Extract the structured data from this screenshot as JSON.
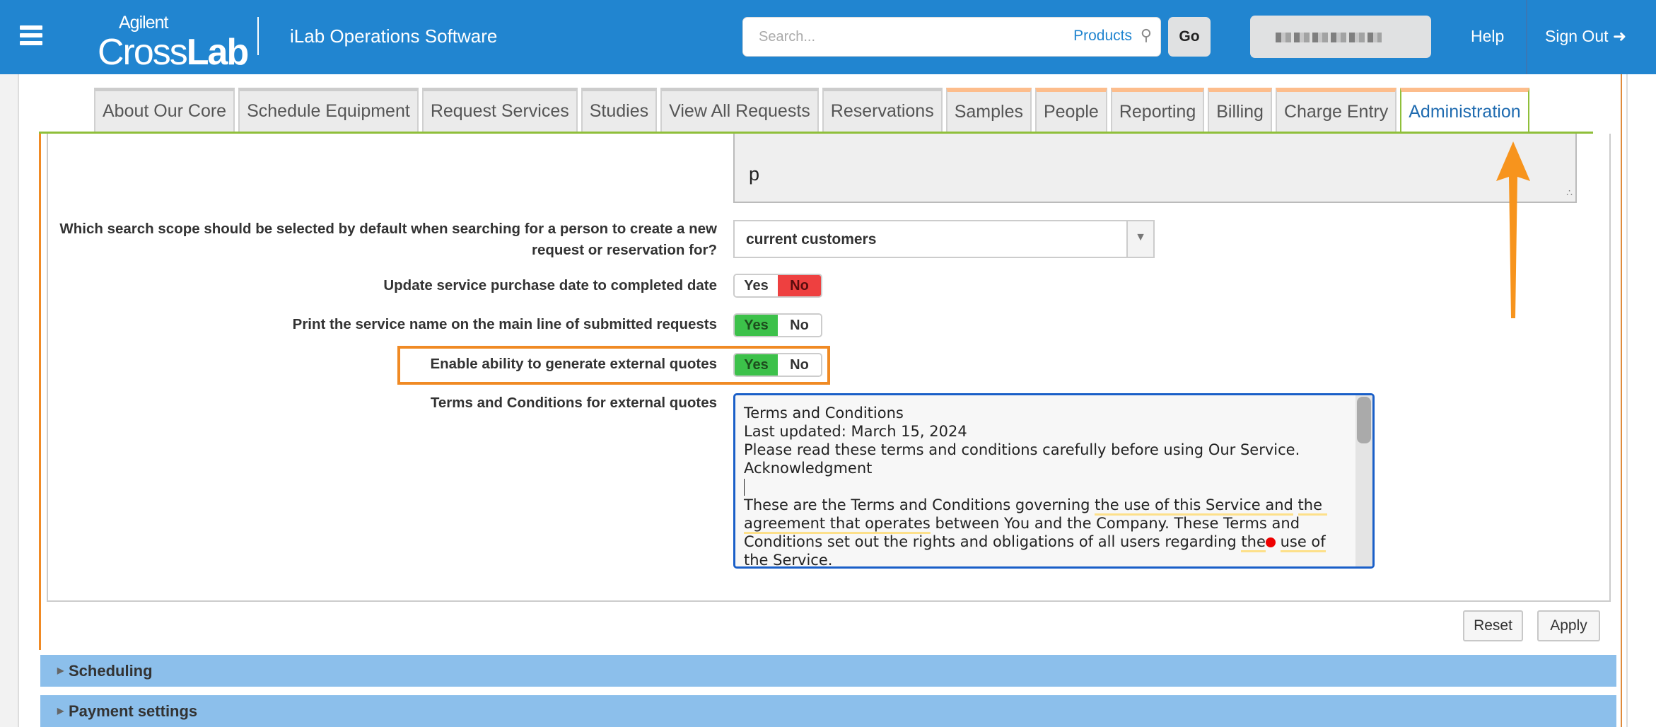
{
  "header": {
    "logo_top": "Agilent",
    "logo_main_a": "Cross",
    "logo_main_b": "Lab",
    "app_name": "iLab Operations Software",
    "search_placeholder": "Search...",
    "search_scope": "Products",
    "go_label": "Go",
    "help_label": "Help",
    "signout_label": "Sign Out"
  },
  "tabs": [
    {
      "label": "About Our Core"
    },
    {
      "label": "Schedule Equipment"
    },
    {
      "label": "Request Services"
    },
    {
      "label": "Studies"
    },
    {
      "label": "View All Requests"
    },
    {
      "label": "Reservations"
    },
    {
      "label": "Samples"
    },
    {
      "label": "People"
    },
    {
      "label": "Reporting"
    },
    {
      "label": "Billing"
    },
    {
      "label": "Charge Entry"
    },
    {
      "label": "Administration",
      "active": true
    }
  ],
  "form": {
    "prev_textarea_value": "p",
    "search_scope": {
      "label": "Which search scope should be selected by default when searching for a person to create a new request or reservation for?",
      "value": "current customers"
    },
    "update_purchase_date": {
      "label": "Update service purchase date to completed date",
      "yes": "Yes",
      "no": "No",
      "selected": "No"
    },
    "print_service_name": {
      "label": "Print the service name on the main line of submitted requests",
      "yes": "Yes",
      "no": "No",
      "selected": "Yes"
    },
    "external_quotes": {
      "label": "Enable ability to generate external quotes",
      "yes": "Yes",
      "no": "No",
      "selected": "Yes"
    },
    "terms": {
      "label": "Terms and Conditions for external quotes",
      "line1": "Terms and Conditions",
      "line2": "Last updated: March 15, 2024",
      "line3": "Please read these terms and conditions carefully before using Our Service.",
      "line4": "Acknowledgment",
      "p_a": "These are the Terms and Conditions governing ",
      "p_b": "the use of this Service and",
      "p_c": "the agreement that operates",
      "p_d": " between You and the Company. These Terms and Conditions set out the rights and obligations of all users regarding ",
      "p_e": "the",
      "p_f": "use of",
      "p_g": " the Service."
    },
    "reset_label": "Reset",
    "apply_label": "Apply"
  },
  "sections": [
    {
      "label": "Scheduling"
    },
    {
      "label": "Payment settings"
    }
  ],
  "colors": {
    "header": "#2185d0",
    "highlight": "#f08a24",
    "section_bar": "#8cbfeb"
  }
}
